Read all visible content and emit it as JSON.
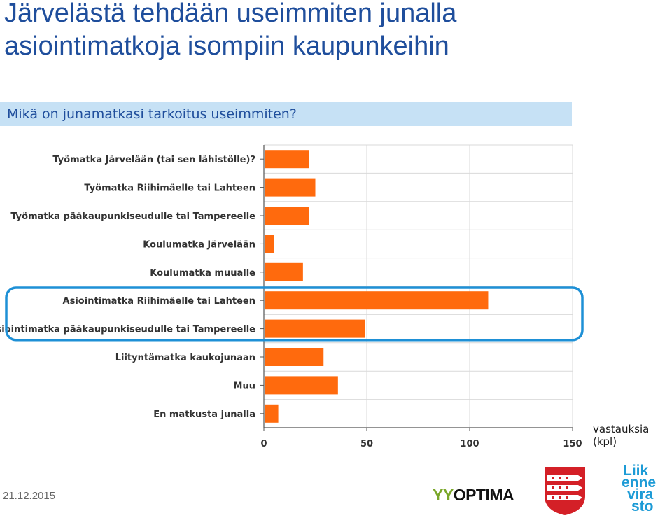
{
  "header": {
    "title_line1": "Järvelästä tehdään useimmiten junalla",
    "title_line2": "asiointimatkoja isompiin kaupunkeihin"
  },
  "question": "Mikä on junamatkasi tarkoitus useimmiten?",
  "chart_data": {
    "type": "bar",
    "orientation": "horizontal",
    "title": "Mikä on junamatkasi tarkoitus useimmiten?",
    "xlabel": "vastauksia (kpl)",
    "ylabel": "",
    "xlim": [
      0,
      150
    ],
    "xticks": [
      0,
      50,
      100,
      150
    ],
    "grid": true,
    "bar_color": "#ff6a0d",
    "highlight_color": "#1e90d6",
    "highlighted_categories": [
      "Asiointimatka Riihimäelle tai Lahteen",
      "Asiointimatka pääkaupunkiseudulle tai Tampereelle"
    ],
    "categories": [
      "Työmatka Järvelään (tai sen lähistölle)?",
      "Työmatka Riihimäelle tai Lahteen",
      "Työmatka pääkaupunkiseudulle tai Tampereelle",
      "Koulumatka Järvelään",
      "Koulumatka muualle",
      "Asiointimatka Riihimäelle tai Lahteen",
      "Asiointimatka pääkaupunkiseudulle tai Tampereelle",
      "Liityntämatka kaukojunaan",
      "Muu",
      "En matkusta junalla"
    ],
    "values": [
      22,
      25,
      22,
      5,
      19,
      109,
      49,
      29,
      36,
      7
    ]
  },
  "footer": {
    "date": "21.12.2015",
    "logo_yy": "YY",
    "logo_optima": "OPTIMA",
    "lv_logo_lines": [
      "Liik",
      "enne",
      "vira",
      "sto"
    ]
  }
}
